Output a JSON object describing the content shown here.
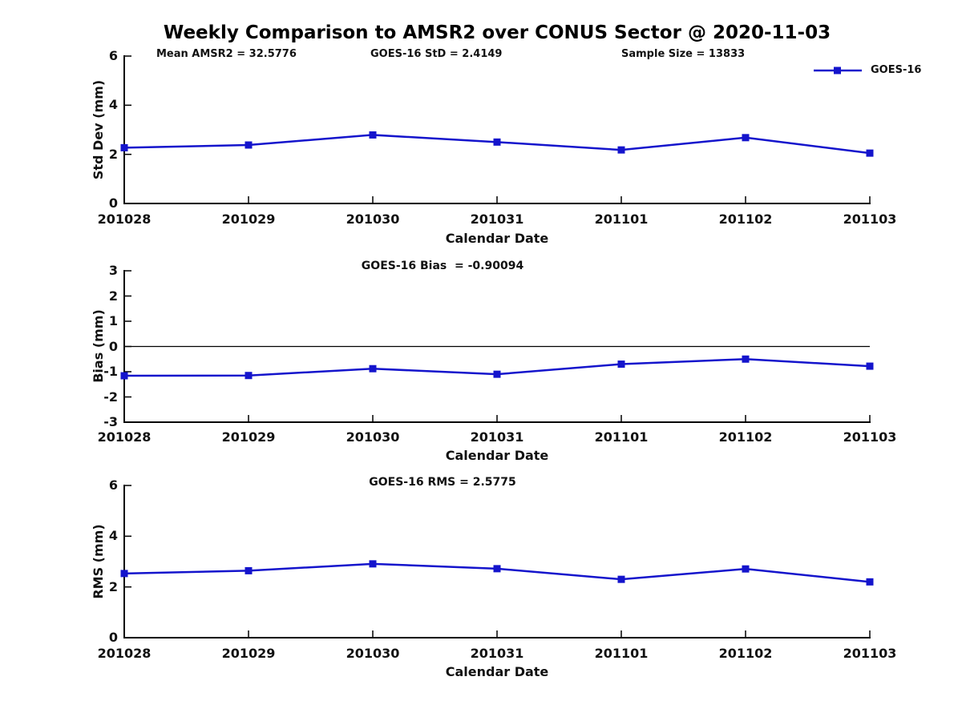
{
  "figure": {
    "title": "Weekly Comparison to AMSR2 over CONUS Sector @ 2020-11-03",
    "xlabel": "Calendar Date"
  },
  "header_annotations": {
    "mean_amsr2": "Mean AMSR2 = 32.5776",
    "goes16_std": "GOES-16 StD = 2.4149",
    "sample_size": "Sample Size = 13833"
  },
  "legend": {
    "label": "GOES-16",
    "series_color": "#1414cc",
    "marker": "filled-square",
    "position": "top-right"
  },
  "colors": {
    "background": "#ffffff",
    "axis": "#000000",
    "text": "#1a1a1a",
    "series": "#1414cc"
  },
  "categories": [
    "201028",
    "201029",
    "201030",
    "201031",
    "201101",
    "201102",
    "201103"
  ],
  "chart_data": [
    {
      "type": "line",
      "panel": "std-dev",
      "title": "",
      "ylabel": "Std Dev (mm)",
      "xlabel": "Calendar Date",
      "ylim": [
        0,
        6
      ],
      "yticks": [
        0,
        2,
        4,
        6
      ],
      "grid": false,
      "zero_line": false,
      "series": [
        {
          "name": "GOES-16",
          "values": [
            2.27,
            2.38,
            2.79,
            2.5,
            2.18,
            2.68,
            2.05
          ]
        }
      ]
    },
    {
      "type": "line",
      "panel": "bias",
      "title": "GOES-16 Bias  = -0.90094",
      "ylabel": "Bias (mm)",
      "xlabel": "Calendar Date",
      "ylim": [
        -3,
        3
      ],
      "yticks": [
        3,
        2,
        1,
        0,
        -1,
        -2,
        -3
      ],
      "grid": false,
      "zero_line": true,
      "series": [
        {
          "name": "GOES-16",
          "values": [
            -1.16,
            -1.15,
            -0.88,
            -1.1,
            -0.7,
            -0.5,
            -0.78
          ]
        }
      ]
    },
    {
      "type": "line",
      "panel": "rms",
      "title": "GOES-16 RMS = 2.5775",
      "ylabel": "RMS (mm)",
      "xlabel": "Calendar Date",
      "ylim": [
        0,
        6
      ],
      "yticks": [
        0,
        2,
        4,
        6
      ],
      "grid": false,
      "zero_line": false,
      "series": [
        {
          "name": "GOES-16",
          "values": [
            2.53,
            2.64,
            2.91,
            2.72,
            2.3,
            2.71,
            2.2
          ]
        }
      ]
    }
  ]
}
